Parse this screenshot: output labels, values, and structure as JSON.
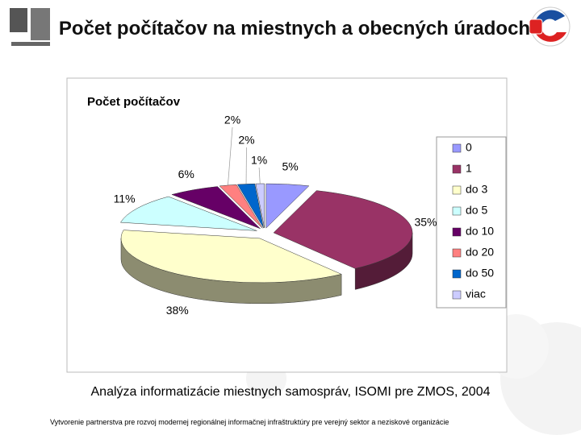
{
  "title": "Počet počítačov na miestnych a obecných úradoch",
  "caption": "Analýza informatizácie miestnych samospráv, ISOMI pre ZMOS, 2004",
  "footer": "Vytvorenie partnerstva pre rozvoj modernej regionálnej informačnej infraštruktúry pre verejný sektor a neziskové organizácie",
  "chart_data": {
    "type": "pie",
    "title": "Počet počítačov",
    "categories": [
      "0",
      "1",
      "do 3",
      "do 5",
      "do 10",
      "do 20",
      "do 50",
      "viac"
    ],
    "values": [
      5,
      35,
      38,
      11,
      6,
      2,
      2,
      1
    ],
    "value_labels": [
      "5%",
      "35%",
      "38%",
      "11%",
      "6%",
      "2%",
      "2%",
      "1%"
    ],
    "colors": [
      "#9999ff",
      "#993366",
      "#ffffcc",
      "#ccffff",
      "#660066",
      "#ff8080",
      "#0066cc",
      "#ccccff"
    ],
    "legend": "right"
  }
}
